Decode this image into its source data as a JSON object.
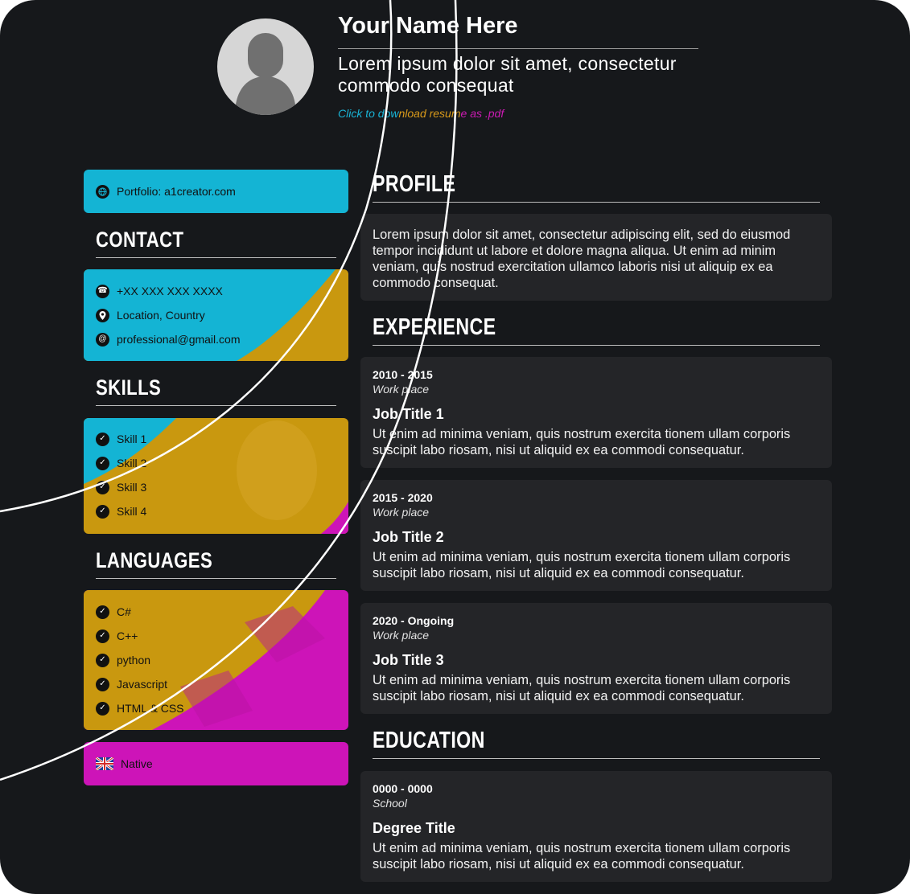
{
  "header": {
    "name": "Your Name Here",
    "tagline": "Lorem ipsum dolor sit amet, consectetur commodo consequat",
    "download_link": {
      "part1": "Click to dow",
      "part2": "nload resum",
      "part3": "e as .pdf"
    }
  },
  "sidebar": {
    "portfolio": {
      "label": "Portfolio: a1creator.com",
      "icon": "globe-icon"
    },
    "contact": {
      "heading": "CONTACT",
      "items": [
        {
          "label": "+XX XXX XXX XXXX",
          "icon": "phone-icon"
        },
        {
          "label": "Location, Country",
          "icon": "location-pin-icon"
        },
        {
          "label": "professional@gmail.com",
          "icon": "at-sign-icon"
        }
      ]
    },
    "skills": {
      "heading": "SKILLS",
      "items": [
        {
          "label": "Skill 1"
        },
        {
          "label": "Skill 2"
        },
        {
          "label": "Skill 3"
        },
        {
          "label": "Skill 4"
        }
      ]
    },
    "languages": {
      "heading": "LANGUAGES",
      "items": [
        {
          "label": "C#"
        },
        {
          "label": "C++"
        },
        {
          "label": "python"
        },
        {
          "label": "Javascript"
        },
        {
          "label": "HTML & CSS"
        }
      ],
      "spoken": {
        "label": "Native",
        "icon": "uk-flag-icon"
      }
    }
  },
  "main": {
    "profile": {
      "heading": "PROFILE",
      "text": "Lorem ipsum dolor sit amet, consectetur adipiscing elit, sed do eiusmod tempor incididunt ut labore et dolore magna aliqua. Ut enim ad minim veniam, quis nostrud exercitation ullamco laboris nisi ut aliquip ex ea commodo consequat."
    },
    "experience": {
      "heading": "EXPERIENCE",
      "jobs": [
        {
          "dates": "2010 - 2015",
          "place": "Work place",
          "title": "Job Title 1",
          "desc": "Ut enim ad minima veniam, quis nostrum exercita tionem ullam corporis suscipit labo riosam, nisi ut aliquid ex ea commodi consequatur."
        },
        {
          "dates": "2015 - 2020",
          "place": "Work place",
          "title": "Job Title 2",
          "desc": "Ut enim ad minima veniam, quis nostrum exercita tionem ullam corporis suscipit labo riosam, nisi ut aliquid ex ea commodi consequatur."
        },
        {
          "dates": "2020 - Ongoing",
          "place": "Work place",
          "title": "Job Title 3",
          "desc": "Ut enim ad minima veniam, quis nostrum exercita tionem ullam corporis suscipit labo riosam, nisi ut aliquid ex ea commodi consequatur."
        }
      ]
    },
    "education": {
      "heading": "EDUCATION",
      "items": [
        {
          "dates": "0000 - 0000",
          "place": "School",
          "title": "Degree Title",
          "desc": "Ut enim ad minima veniam, quis nostrum exercita tionem ullam corporis suscipit labo riosam, nisi ut aliquid ex ea commodi consequatur."
        }
      ]
    }
  },
  "colors": {
    "background": "#16181b",
    "card": "#242528",
    "cyan": "#15b5d5",
    "gold": "#c9980f",
    "magenta": "#cd14b8"
  },
  "icons": {
    "check": "check-circle-icon",
    "avatar": "person-silhouette-icon"
  }
}
